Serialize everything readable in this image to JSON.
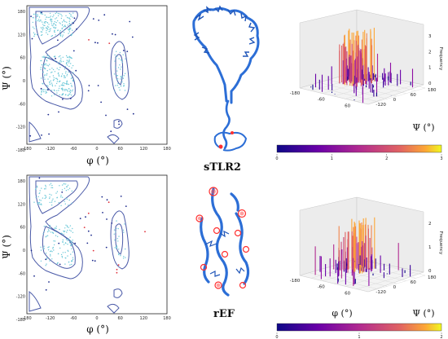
{
  "panels": {
    "top": {
      "ramachandran": {
        "x_ticks": [
          "-180",
          "-120",
          "-60",
          "0",
          "60",
          "120",
          "180"
        ],
        "y_ticks": [
          "180",
          "120",
          "60",
          "0",
          "-60",
          "-120",
          "-180"
        ],
        "xlabel": "φ (°)",
        "ylabel": "Ψ (°)"
      },
      "structure_label": "sTLR2",
      "histogram3d": {
        "x_ticks": [
          "-180",
          "-60",
          "60"
        ],
        "y_ticks": [
          "180",
          "60",
          "0",
          "-120"
        ],
        "z_ticks": [
          "3",
          "2",
          "1",
          "0"
        ],
        "z_label": "Frequency",
        "y_label": "Ψ (°)",
        "colorbar_ticks": [
          "0",
          "1",
          "2",
          "3"
        ]
      }
    },
    "bottom": {
      "ramachandran": {
        "x_ticks": [
          "-180",
          "-120",
          "-60",
          "0",
          "60",
          "120",
          "180"
        ],
        "y_ticks": [
          "180",
          "120",
          "60",
          "0",
          "-60",
          "-120",
          "-180"
        ],
        "xlabel": "φ (°)",
        "ylabel": "Ψ (°)"
      },
      "structure_label": "rEF",
      "histogram3d": {
        "x_ticks": [
          "-180",
          "-60",
          "60"
        ],
        "y_ticks": [
          "180",
          "60",
          "0",
          "-120"
        ],
        "z_ticks": [
          "2",
          "1",
          "0"
        ],
        "z_label": "Frequency",
        "x_label": "φ (°)",
        "y_label": "Ψ (°)",
        "colorbar_ticks": [
          "0",
          "1",
          "2"
        ]
      }
    }
  },
  "colors": {
    "contour": "#4a5aa8",
    "points_light": "#6cc8d8",
    "points_dark": "#1c2a8c",
    "points_red": "#e0303a",
    "protein": "#2c6ed6",
    "protein_highlight": "#ff3030"
  }
}
